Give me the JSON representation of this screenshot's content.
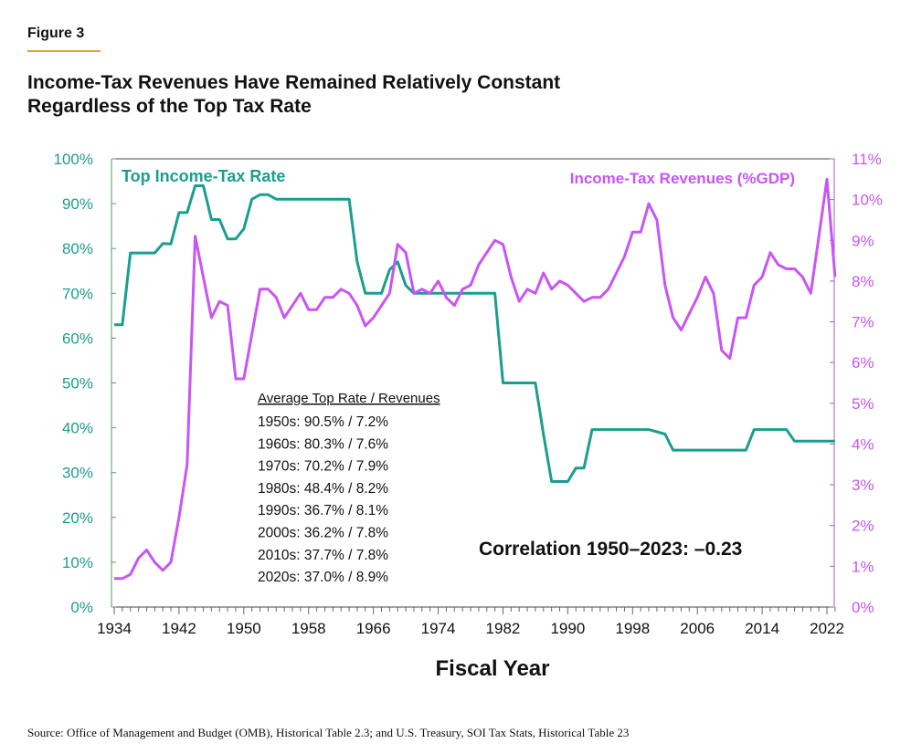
{
  "figure_label": "Figure 3",
  "title": "Income-Tax Revenues Have Remained Relatively Constant Regardless of the Top Tax Rate",
  "source": "Source: Office of Management and Budget (OMB), Historical Table 2.3; and U.S. Treasury, SOI Tax Stats, Historical Table 23",
  "colors": {
    "rate": "#1a9e8f",
    "revenue": "#c855f5"
  },
  "chart_data": {
    "type": "line",
    "xlabel": "Fiscal Year",
    "x_ticks": [
      "1934",
      "1942",
      "1950",
      "1958",
      "1966",
      "1974",
      "1982",
      "1990",
      "1998",
      "2006",
      "2014",
      "2022"
    ],
    "xlim": [
      1934,
      2023
    ],
    "left_axis": {
      "ylim": [
        0,
        100
      ],
      "ticks": [
        "0%",
        "10%",
        "20%",
        "30%",
        "40%",
        "50%",
        "60%",
        "70%",
        "80%",
        "90%",
        "100%"
      ]
    },
    "right_axis": {
      "ylim": [
        0,
        11
      ],
      "ticks": [
        "0%",
        "1%",
        "2%",
        "3%",
        "4%",
        "5%",
        "6%",
        "7%",
        "8%",
        "9%",
        "10%",
        "11%"
      ]
    },
    "x": [
      1934,
      1935,
      1936,
      1937,
      1938,
      1939,
      1940,
      1941,
      1942,
      1943,
      1944,
      1945,
      1946,
      1947,
      1948,
      1949,
      1950,
      1951,
      1952,
      1953,
      1954,
      1955,
      1956,
      1957,
      1958,
      1959,
      1960,
      1961,
      1962,
      1963,
      1964,
      1965,
      1966,
      1967,
      1968,
      1969,
      1970,
      1971,
      1972,
      1973,
      1974,
      1975,
      1976,
      1977,
      1978,
      1979,
      1980,
      1981,
      1982,
      1983,
      1984,
      1985,
      1986,
      1987,
      1988,
      1989,
      1990,
      1991,
      1992,
      1993,
      1994,
      1995,
      1996,
      1997,
      1998,
      1999,
      2000,
      2001,
      2002,
      2003,
      2004,
      2005,
      2006,
      2007,
      2008,
      2009,
      2010,
      2011,
      2012,
      2013,
      2014,
      2015,
      2016,
      2017,
      2018,
      2019,
      2020,
      2021,
      2022,
      2023
    ],
    "series": [
      {
        "name": "Top Income-Tax Rate",
        "axis": "left",
        "values": [
          63,
          63,
          79,
          79,
          79,
          79,
          81.1,
          81,
          88,
          88,
          94,
          94,
          86.45,
          86.45,
          82.13,
          82.13,
          84.36,
          91,
          92,
          92,
          91,
          91,
          91,
          91,
          91,
          91,
          91,
          91,
          91,
          91,
          77,
          70,
          70,
          70,
          75.25,
          77,
          71.75,
          70,
          70,
          70,
          70,
          70,
          70,
          70,
          70,
          70,
          70,
          70,
          50,
          50,
          50,
          50,
          50,
          38.5,
          28,
          28,
          28,
          31,
          31,
          39.6,
          39.6,
          39.6,
          39.6,
          39.6,
          39.6,
          39.6,
          39.6,
          39.1,
          38.6,
          35,
          35,
          35,
          35,
          35,
          35,
          35,
          35,
          35,
          35,
          39.6,
          39.6,
          39.6,
          39.6,
          39.6,
          37,
          37,
          37,
          37,
          37,
          37
        ]
      },
      {
        "name": "Income-Tax Revenues (%GDP)",
        "axis": "right",
        "values": [
          0.7,
          0.7,
          0.8,
          1.2,
          1.4,
          1.1,
          0.9,
          1.1,
          2.2,
          3.5,
          9.1,
          8.1,
          7.1,
          7.5,
          7.4,
          5.6,
          5.6,
          6.7,
          7.8,
          7.8,
          7.6,
          7.1,
          7.4,
          7.7,
          7.3,
          7.3,
          7.6,
          7.6,
          7.8,
          7.7,
          7.4,
          6.9,
          7.1,
          7.4,
          7.7,
          8.9,
          8.7,
          7.7,
          7.8,
          7.7,
          8.0,
          7.6,
          7.4,
          7.8,
          7.9,
          8.4,
          8.7,
          9.0,
          8.9,
          8.1,
          7.5,
          7.8,
          7.7,
          8.2,
          7.8,
          8.0,
          7.9,
          7.7,
          7.5,
          7.6,
          7.6,
          7.8,
          8.2,
          8.6,
          9.2,
          9.2,
          9.9,
          9.5,
          7.9,
          7.1,
          6.8,
          7.2,
          7.6,
          8.1,
          7.7,
          6.3,
          6.1,
          7.1,
          7.1,
          7.9,
          8.1,
          8.7,
          8.4,
          8.3,
          8.3,
          8.1,
          7.7,
          9.1,
          10.5,
          8.1
        ]
      }
    ],
    "annotations": {
      "summary_header": "Average Top Rate / Revenues",
      "summary_rows": [
        "1950s: 90.5% / 7.2%",
        "1960s: 80.3% / 7.6%",
        "1970s: 70.2% / 7.9%",
        "1980s: 48.4% / 8.2%",
        "1990s: 36.7% / 8.1%",
        "2000s: 36.2% / 7.8%",
        "2010s: 37.7% / 7.8%",
        "2020s: 37.0% / 8.9%"
      ],
      "correlation": "Correlation 1950–2023: –0.23"
    }
  }
}
